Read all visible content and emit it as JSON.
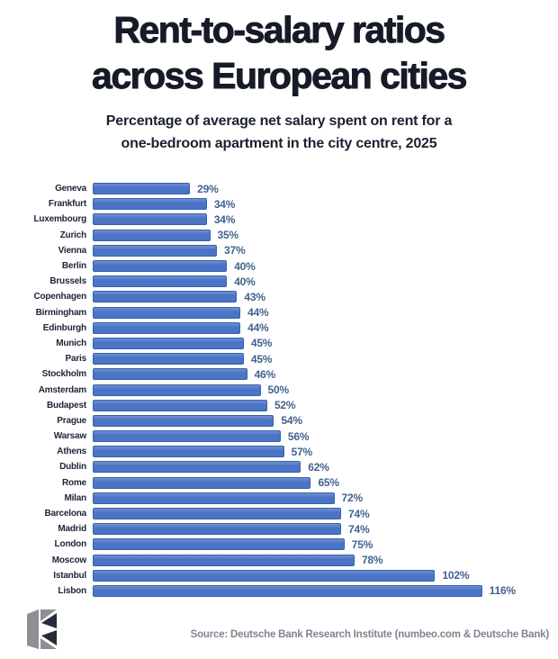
{
  "header": {
    "title_line1": "Rent-to-salary ratios",
    "title_line2": "across European cities",
    "subtitle_line1": "Percentage of average net salary spent on rent for a",
    "subtitle_line2": "one-bedroom apartment in the city centre, 2025"
  },
  "chart_data": {
    "type": "bar",
    "orientation": "horizontal",
    "title": "Rent-to-salary ratios across European cities",
    "subtitle": "Percentage of average net salary spent on rent for a one-bedroom apartment in the city centre, 2025",
    "categories": [
      "Geneva",
      "Frankfurt",
      "Luxembourg",
      "Zurich",
      "Vienna",
      "Berlin",
      "Brussels",
      "Copenhagen",
      "Birmingham",
      "Edinburgh",
      "Munich",
      "Paris",
      "Stockholm",
      "Amsterdam",
      "Budapest",
      "Prague",
      "Warsaw",
      "Athens",
      "Dublin",
      "Rome",
      "Milan",
      "Barcelona",
      "Madrid",
      "London",
      "Moscow",
      "Istanbul",
      "Lisbon"
    ],
    "values": [
      29,
      34,
      34,
      35,
      37,
      40,
      40,
      43,
      44,
      44,
      45,
      45,
      46,
      50,
      52,
      54,
      56,
      57,
      62,
      65,
      72,
      74,
      74,
      75,
      78,
      102,
      116
    ],
    "unit": "%",
    "xlim": [
      0,
      120
    ],
    "grid": false,
    "legend": false,
    "bar_color": "#4b73c6",
    "bar_border_color": "#3760ad",
    "value_label_color": "#44618f",
    "category_label_color": "#1d2435"
  },
  "footer": {
    "source": "Source: Deutsche Bank Research Institute (numbeo.com & Deutsche Bank)",
    "logo_icon": "publisher-e-mark-icon"
  },
  "colors": {
    "background": "#ffffff",
    "title_text": "#161b27"
  }
}
